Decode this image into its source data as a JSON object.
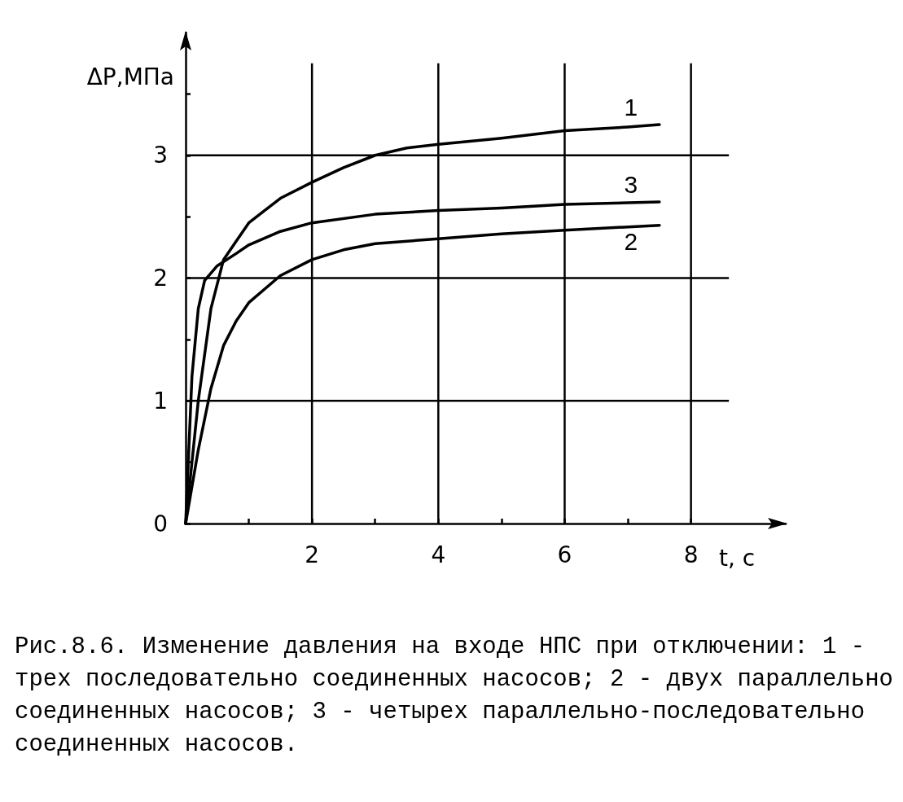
{
  "chart_data": {
    "type": "line",
    "xlabel": "t, с",
    "ylabel": "ΔP,МПа",
    "annotations": [
      "Рис.8.6. Изменение давления на входе НПС при отключении: 1 - трех последовательно соединенных насосов; 2 - двух параллельно соединенных насосов; 3 - четырех параллельно-последовательно соединенных насосов."
    ],
    "xlim": [
      0,
      9.5
    ],
    "ylim": [
      0,
      4
    ],
    "xticks": [
      {
        "value": 1,
        "label": null
      },
      2,
      {
        "value": 3,
        "label": null
      },
      4,
      {
        "value": 5,
        "label": null
      },
      6,
      {
        "value": 7,
        "label": null
      },
      8
    ],
    "yticks": [
      0,
      {
        "value": 0.5,
        "label": null
      },
      1,
      {
        "value": 1.5,
        "label": null
      },
      2,
      {
        "value": 2.5,
        "label": null
      },
      3,
      {
        "value": 3.5,
        "label": null
      }
    ],
    "grid": true,
    "marker": "none",
    "line_style": "solid",
    "series": [
      {
        "name": "1",
        "color": "#000000",
        "x": [
          0,
          0.2,
          0.4,
          0.6,
          0.8,
          1,
          1.5,
          2,
          2.5,
          3,
          3.5,
          4,
          5,
          6,
          7,
          7.5
        ],
        "values": [
          0,
          1.0,
          1.75,
          2.15,
          2.3,
          2.45,
          2.65,
          2.78,
          2.9,
          3.0,
          3.06,
          3.09,
          3.14,
          3.2,
          3.23,
          3.25
        ]
      },
      {
        "name": "2",
        "color": "#000000",
        "x": [
          0,
          0.2,
          0.4,
          0.6,
          0.8,
          1,
          1.5,
          2,
          2.5,
          3,
          4,
          5,
          6,
          7.5
        ],
        "values": [
          0,
          0.6,
          1.1,
          1.45,
          1.65,
          1.8,
          2.02,
          2.15,
          2.23,
          2.28,
          2.32,
          2.36,
          2.39,
          2.43
        ]
      },
      {
        "name": "3",
        "color": "#000000",
        "x": [
          0,
          0.1,
          0.2,
          0.3,
          0.5,
          0.8,
          1,
          1.5,
          2,
          3,
          4,
          5,
          6,
          7.5
        ],
        "values": [
          0,
          1.2,
          1.75,
          1.98,
          2.1,
          2.2,
          2.27,
          2.38,
          2.45,
          2.52,
          2.55,
          2.57,
          2.6,
          2.62
        ]
      }
    ]
  }
}
